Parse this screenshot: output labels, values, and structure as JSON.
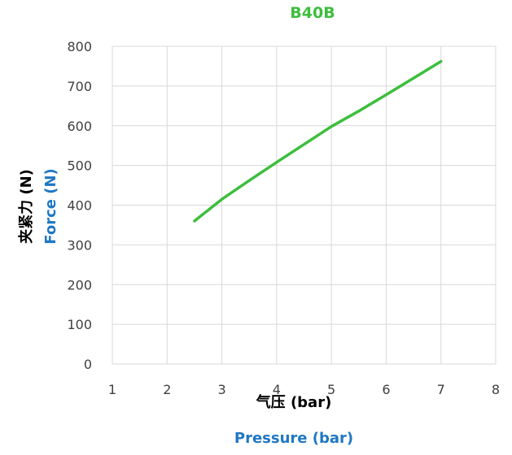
{
  "chart_data": {
    "type": "line",
    "title": "B40B",
    "xlabel_cn": "气压 (bar)",
    "xlabel_en": "Pressure (bar)",
    "ylabel_cn": "夹紧力 (N)",
    "ylabel_en": "Force (N)",
    "xlim": [
      1,
      8
    ],
    "ylim": [
      0,
      800
    ],
    "xticks": [
      1,
      2,
      3,
      4,
      5,
      6,
      7,
      8
    ],
    "yticks": [
      0,
      100,
      200,
      300,
      400,
      500,
      600,
      700,
      800
    ],
    "grid": true,
    "legend": "none",
    "series": [
      {
        "color": "#3DBE3D",
        "x": [
          2.5,
          3.0,
          3.5,
          4.0,
          4.5,
          5.0,
          5.5,
          6.0,
          6.5,
          7.0
        ],
        "y": [
          360,
          415,
          462,
          508,
          553,
          598,
          637,
          678,
          720,
          762
        ]
      }
    ],
    "colors": {
      "title": "#3DBE3D",
      "english_label": "#1F77C4",
      "chinese_label": "#000000",
      "grid": "#D9D9D9",
      "tick_text": "#404040"
    }
  }
}
